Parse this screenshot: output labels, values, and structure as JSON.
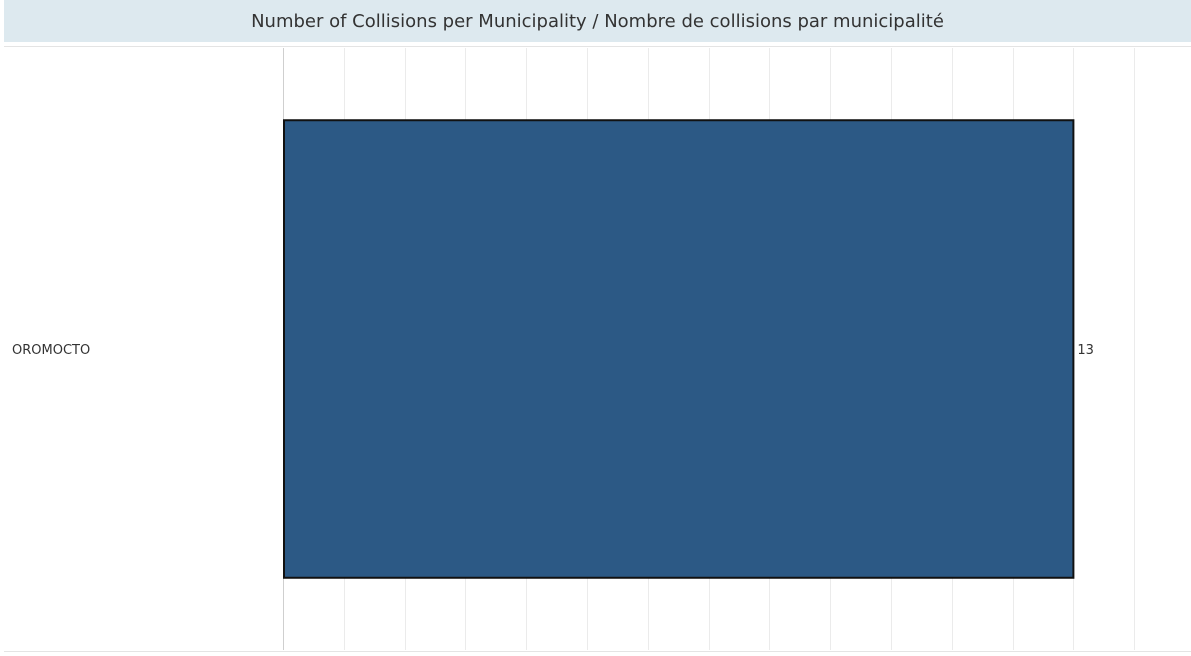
{
  "chart_data": {
    "type": "bar",
    "orientation": "horizontal",
    "title": "Number of Collisions per Municipality / Nombre de collisions par municipalité",
    "categories": [
      "OROMOCTO"
    ],
    "values": [
      13
    ],
    "xlim": [
      0,
      18
    ],
    "grid": true,
    "bar_color": "#2c5985",
    "bar_outline": "#111111",
    "show_data_labels": true
  }
}
